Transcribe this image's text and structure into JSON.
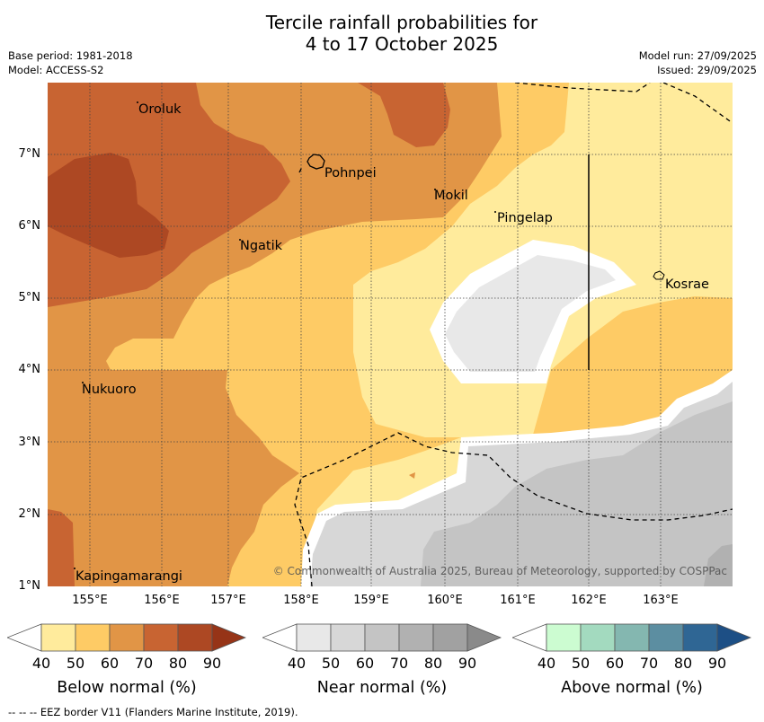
{
  "title": {
    "line1": "Tercile rainfall probabilities for",
    "line2": "4 to 17 October 2025"
  },
  "meta": {
    "base_period": "Base period: 1981-2018",
    "model": "Model: ACCESS-S2",
    "model_run": "Model run: 27/09/2025",
    "issued": "Issued: 29/09/2025"
  },
  "map": {
    "lon_ticks": [
      "155°E",
      "156°E",
      "157°E",
      "158°E",
      "159°E",
      "160°E",
      "161°E",
      "162°E",
      "163°E"
    ],
    "lat_ticks": [
      "7°N",
      "6°N",
      "5°N",
      "4°N",
      "3°N",
      "2°N",
      "1°N"
    ],
    "places": {
      "oroluk": "Oroluk",
      "pohnpei": "Pohnpei",
      "mokil": "Mokil",
      "pingelap": "Pingelap",
      "ngatik": "Ngatik",
      "kosrae": "Kosrae",
      "nukuoro": "Nukuoro",
      "kapingamarangi": "Kapingamarangi"
    },
    "copyright": "© Commonwealth of Australia 2025, Bureau of Meteorology, supported by COSPPac"
  },
  "legends": {
    "below": {
      "title": "Below normal (%)",
      "labels": [
        "40",
        "50",
        "60",
        "70",
        "80",
        "90"
      ],
      "colors": [
        "#ffeb9c",
        "#fecb65",
        "#e19546",
        "#c86432",
        "#ad4823",
        "#963417"
      ]
    },
    "near": {
      "title": "Near normal (%)",
      "labels": [
        "40",
        "50",
        "60",
        "70",
        "80",
        "90"
      ],
      "colors": [
        "#e8e8e8",
        "#d7d7d7",
        "#c4c4c4",
        "#b1b1b1",
        "#a1a1a1",
        "#8a8a8a"
      ]
    },
    "above": {
      "title": "Above normal (%)",
      "labels": [
        "40",
        "50",
        "60",
        "70",
        "80",
        "90"
      ],
      "colors": [
        "#ccfcd1",
        "#a3dabf",
        "#84b7b0",
        "#5c8ea1",
        "#2f6694",
        "#1d4f85"
      ]
    }
  },
  "footer": "-- -- -- EEZ border V11 (Flanders Marine Institute, 2019)."
}
